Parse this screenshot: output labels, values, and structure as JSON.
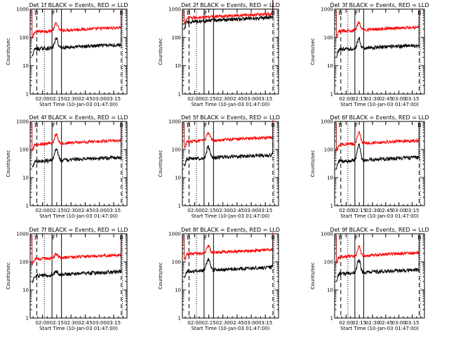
{
  "colors": {
    "events": "#000000",
    "lld": "#ff0000",
    "axes": "#000000"
  },
  "chart_data": [
    {
      "type": "line",
      "title": "Det 1f BLACK = Events, RED = LLD",
      "xlabel": "Start Time (10-Jan-03 01:47:00)",
      "ylabel": "Counts/sec",
      "x_ticks": [
        "02:00",
        "02:15",
        "02:30",
        "02:45",
        "03:00",
        "03:15"
      ],
      "y_ticks": [
        "1",
        "10",
        "100",
        "1000"
      ],
      "y_scale": "log",
      "ylim": [
        1,
        1000
      ],
      "markers": [
        "B",
        "F",
        "B"
      ],
      "events_level": 47,
      "lld_level": 190,
      "flare_peak_events": 95,
      "flare_peak_lld": 330
    },
    {
      "type": "line",
      "title": "Det 2f BLACK = Events, RED = LLD",
      "xlabel": "Start Time (10-Jan-03 01:47:00)",
      "ylabel": "Counts/sec",
      "x_ticks": [
        "02:00",
        "02:15",
        "02:30",
        "02:45",
        "03:00",
        "03:15"
      ],
      "y_ticks": [
        "1",
        "10",
        "100",
        "1000"
      ],
      "y_scale": "log",
      "ylim": [
        1,
        1000
      ],
      "markers": [
        "B",
        "F",
        "B"
      ],
      "events_level": 430,
      "lld_level": 580,
      "flare_peak_events": 430,
      "flare_peak_lld": 580
    },
    {
      "type": "line",
      "title": "Det 3f BLACK = Events, RED = LLD",
      "xlabel": "Start Time (10-Jan-03 01:47:00)",
      "ylabel": "Counts/sec",
      "x_ticks": [
        "02:00",
        "02:15",
        "02:30",
        "02:45",
        "03:00",
        "03:15"
      ],
      "y_ticks": [
        "1",
        "10",
        "100",
        "1000"
      ],
      "y_scale": "log",
      "ylim": [
        1,
        1000
      ],
      "markers": [
        "B",
        "F",
        "B"
      ],
      "events_level": 45,
      "lld_level": 200,
      "flare_peak_events": 95,
      "flare_peak_lld": 360
    },
    {
      "type": "line",
      "title": "Det 4f BLACK = Events, RED = LLD",
      "xlabel": "Start Time (10-Jan-03 01:47:00)",
      "ylabel": "Counts/sec",
      "x_ticks": [
        "02:00",
        "02:15",
        "02:30",
        "02:45",
        "03:00",
        "03:15"
      ],
      "y_ticks": [
        "1",
        "10",
        "100",
        "1000"
      ],
      "y_scale": "log",
      "ylim": [
        1,
        1000
      ],
      "markers": [
        "B",
        "F",
        "B"
      ],
      "events_level": 45,
      "lld_level": 180,
      "flare_peak_events": 110,
      "flare_peak_lld": 360
    },
    {
      "type": "line",
      "title": "Det 5f BLACK = Events, RED = LLD",
      "xlabel": "Start Time (10-Jan-03 01:47:00)",
      "ylabel": "Counts/sec",
      "x_ticks": [
        "02:00",
        "02:15",
        "02:30",
        "02:45",
        "03:00",
        "03:15"
      ],
      "y_ticks": [
        "1",
        "10",
        "100",
        "1000"
      ],
      "y_scale": "log",
      "ylim": [
        1,
        1000
      ],
      "markers": [
        "B",
        "F",
        "B"
      ],
      "events_level": 55,
      "lld_level": 230,
      "flare_peak_events": 130,
      "flare_peak_lld": 410
    },
    {
      "type": "line",
      "title": "Det 6f BLACK = Events, RED = LLD",
      "xlabel": "Start Time (10-Jan-03 01:47:00)",
      "ylabel": "Counts/sec",
      "x_ticks": [
        "02:00",
        "02:15",
        "02:30",
        "02:45",
        "03:00",
        "03:15"
      ],
      "y_ticks": [
        "1",
        "10",
        "100",
        "1000"
      ],
      "y_scale": "log",
      "ylim": [
        1,
        1000
      ],
      "markers": [
        "B",
        "F",
        "B"
      ],
      "events_level": 45,
      "lld_level": 180,
      "flare_peak_events": 150,
      "flare_peak_lld": 420
    },
    {
      "type": "line",
      "title": "Det 7f BLACK = Events, RED = LLD",
      "xlabel": "Start Time (10-Jan-03 01:47:00)",
      "ylabel": "Counts/sec",
      "x_ticks": [
        "02:00",
        "02:15",
        "02:30",
        "02:45",
        "03:00",
        "03:15"
      ],
      "y_ticks": [
        "1",
        "10",
        "100",
        "1000"
      ],
      "y_scale": "log",
      "ylim": [
        1,
        1000
      ],
      "markers": [
        "B",
        "F",
        "B"
      ],
      "events_level": 38,
      "lld_level": 150,
      "flare_peak_events": 50,
      "flare_peak_lld": 210
    },
    {
      "type": "line",
      "title": "Det 8f BLACK = Events, RED = LLD",
      "xlabel": "Start Time (10-Jan-03 01:47:00)",
      "ylabel": "Counts/sec",
      "x_ticks": [
        "02:00",
        "02:15",
        "02:30",
        "02:45",
        "03:00",
        "03:15"
      ],
      "y_ticks": [
        "1",
        "10",
        "100",
        "1000"
      ],
      "y_scale": "log",
      "ylim": [
        1,
        1000
      ],
      "markers": [
        "B",
        "F",
        "B"
      ],
      "events_level": 55,
      "lld_level": 230,
      "flare_peak_events": 130,
      "flare_peak_lld": 400
    },
    {
      "type": "line",
      "title": "Det 9f BLACK = Events, RED = LLD",
      "xlabel": "Start Time (10-Jan-03 01:47:00)",
      "ylabel": "Counts/sec",
      "x_ticks": [
        "02:00",
        "02:15",
        "02:30",
        "02:45",
        "03:00",
        "03:15"
      ],
      "y_ticks": [
        "1",
        "10",
        "100",
        "1000"
      ],
      "y_scale": "log",
      "ylim": [
        1,
        1000
      ],
      "markers": [
        "B",
        "F",
        "B"
      ],
      "events_level": 45,
      "lld_level": 180,
      "flare_peak_events": 120,
      "flare_peak_lld": 360
    }
  ]
}
